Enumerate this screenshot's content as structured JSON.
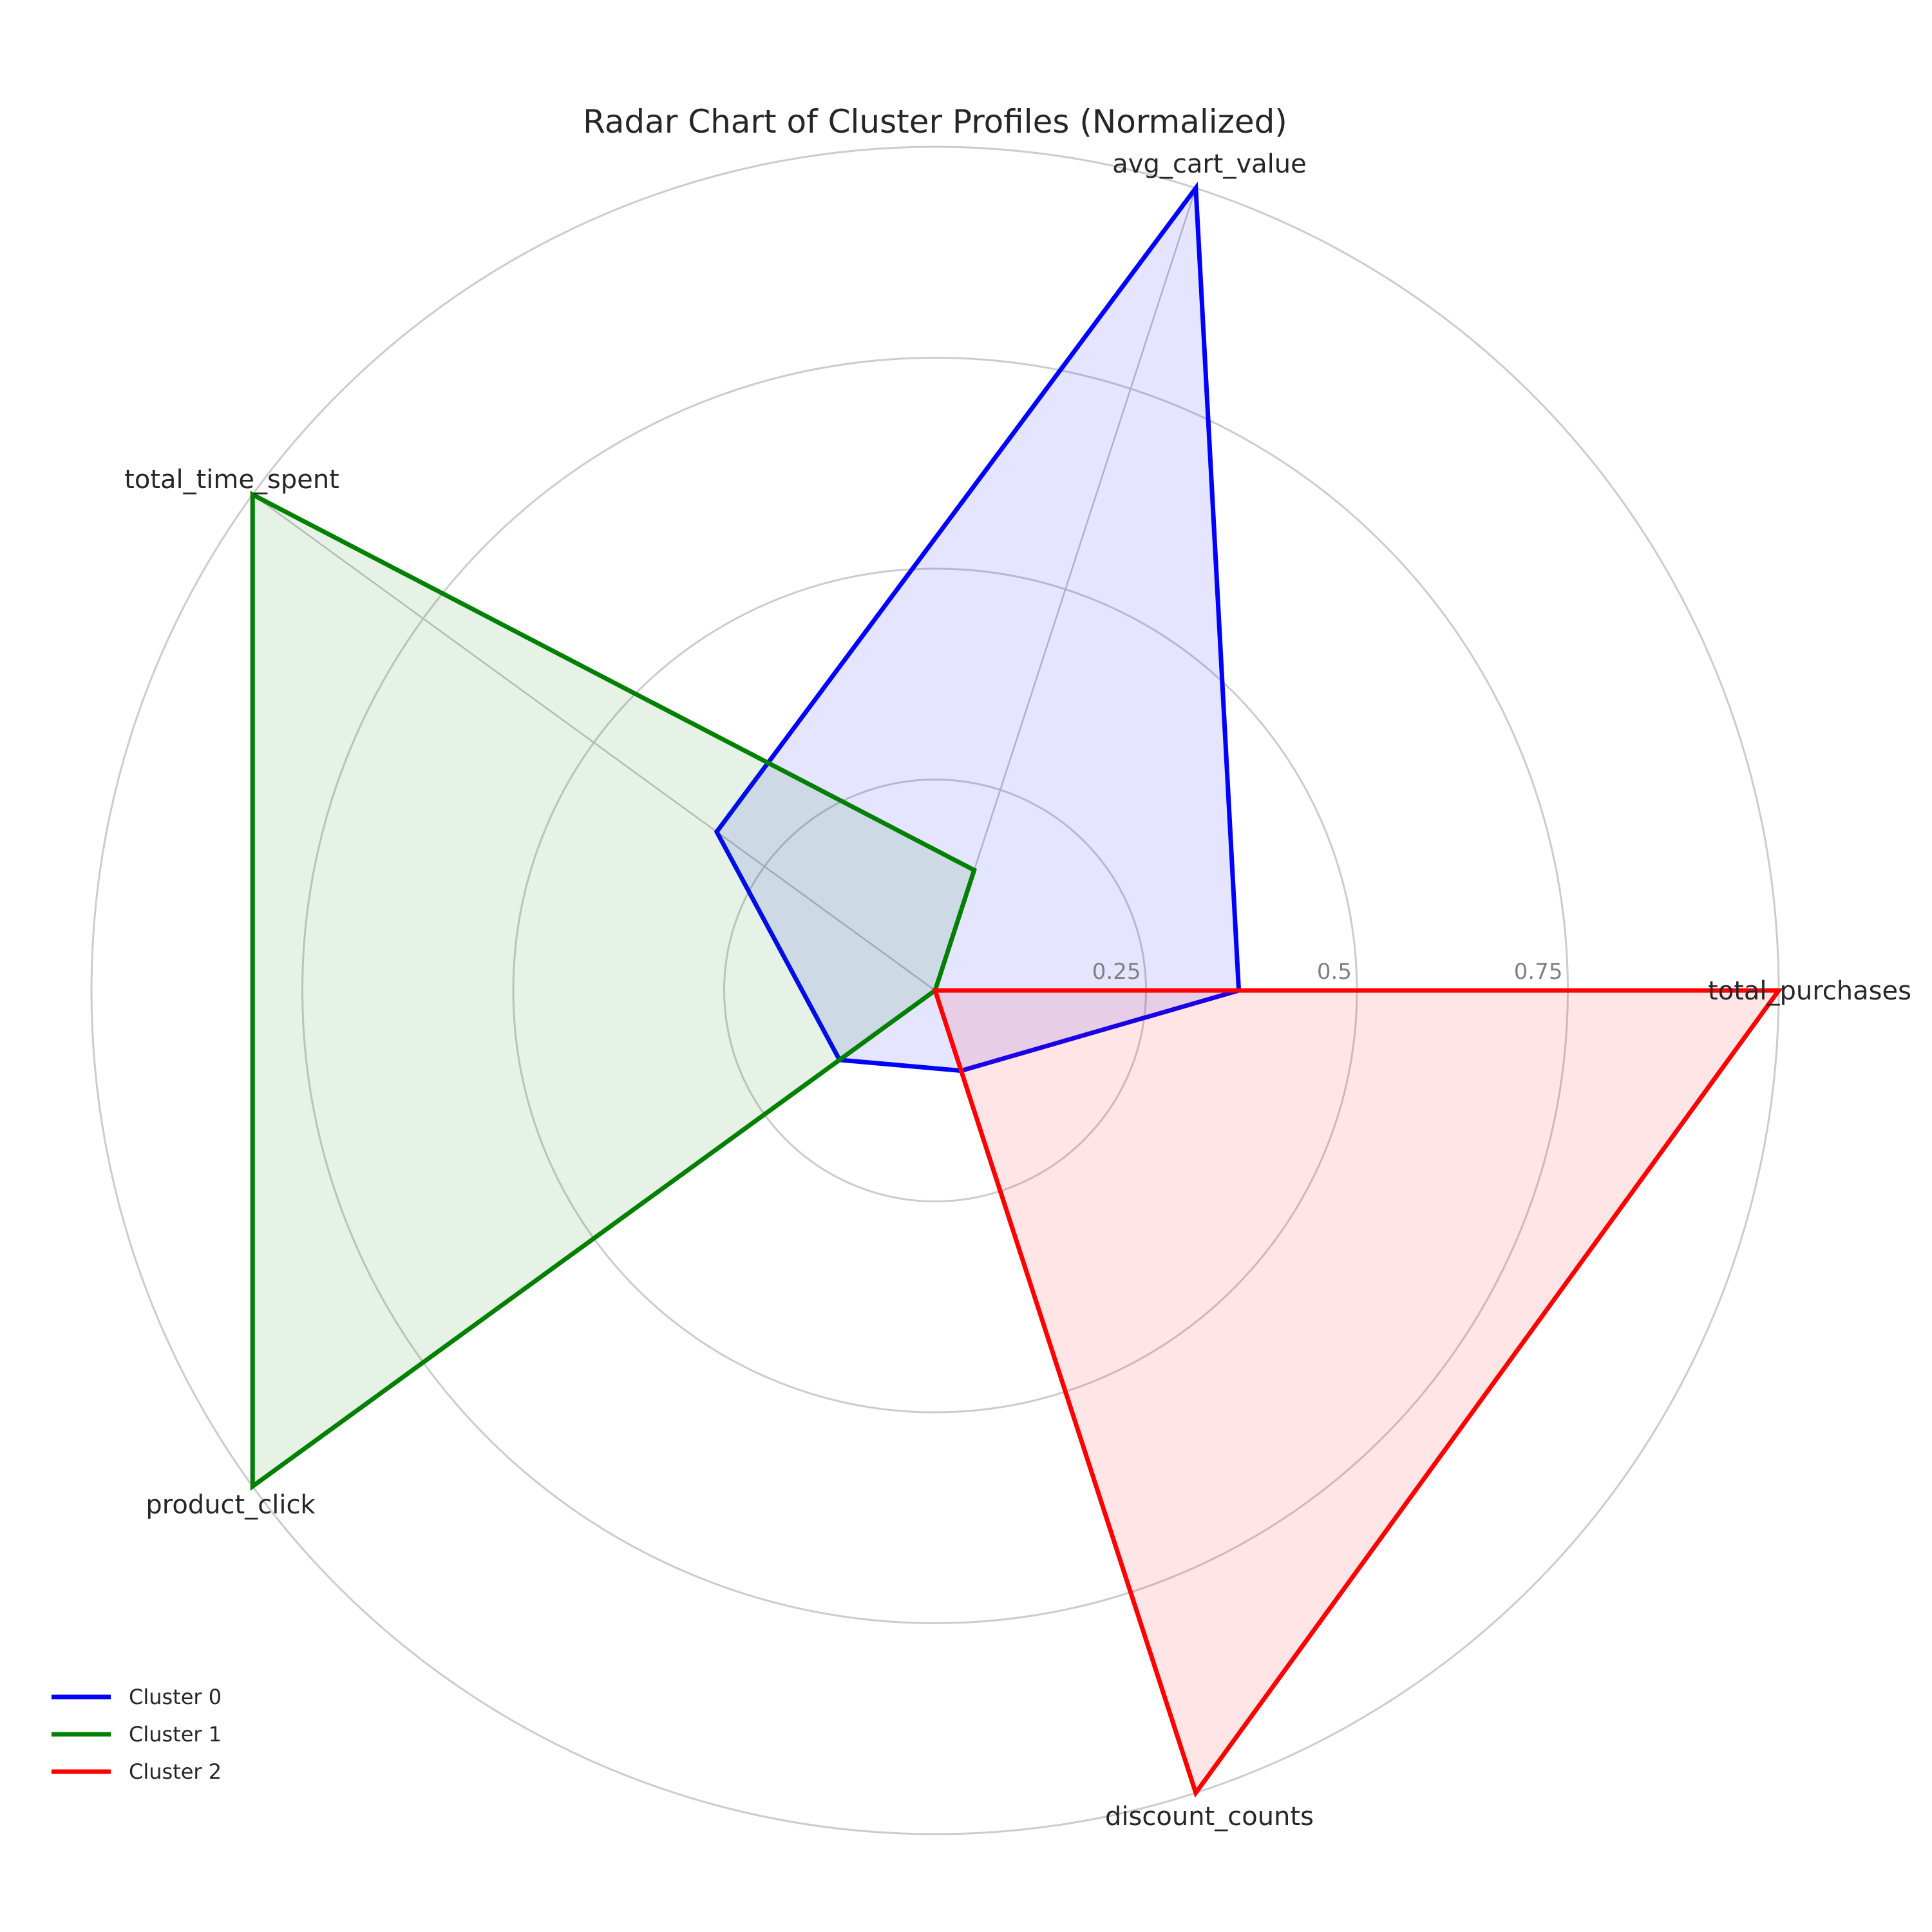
{
  "chart_data": {
    "type": "radar",
    "title": "Radar Chart of Cluster Profiles (Normalized)",
    "axes": [
      "total_purchases",
      "avg_cart_value",
      "total_time_spent",
      "product_click",
      "discount_counts"
    ],
    "rlim": [
      0,
      1
    ],
    "rticks": [
      0.25,
      0.5,
      0.75,
      1.0
    ],
    "rtick_labels": [
      "0.25",
      "0.5",
      "0.75",
      ""
    ],
    "grid": true,
    "legend_position": "lower-left",
    "series": [
      {
        "name": "Cluster 0",
        "color": "#0000ff",
        "values": [
          0.36,
          1.0,
          0.32,
          0.14,
          0.1
        ]
      },
      {
        "name": "Cluster 1",
        "color": "#008000",
        "values": [
          0.0,
          0.15,
          1.0,
          1.0,
          0.0
        ]
      },
      {
        "name": "Cluster 2",
        "color": "#ff0000",
        "values": [
          1.0,
          0.0,
          0.0,
          0.0,
          1.0
        ]
      }
    ]
  }
}
